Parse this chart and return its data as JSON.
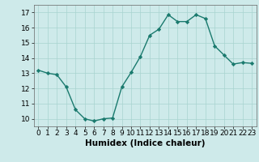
{
  "x": [
    0,
    1,
    2,
    3,
    4,
    5,
    6,
    7,
    8,
    9,
    10,
    11,
    12,
    13,
    14,
    15,
    16,
    17,
    18,
    19,
    20,
    21,
    22,
    23
  ],
  "y": [
    13.2,
    13.0,
    12.9,
    12.1,
    10.6,
    10.0,
    9.85,
    10.0,
    10.05,
    12.1,
    13.05,
    14.1,
    15.5,
    15.9,
    16.85,
    16.4,
    16.4,
    16.85,
    16.6,
    14.8,
    14.2,
    13.6,
    13.7,
    13.65
  ],
  "line_color": "#1a7a6e",
  "marker": "D",
  "markersize": 2.2,
  "linewidth": 1.0,
  "bg_color": "#ceeaea",
  "grid_color": "#a8d4d0",
  "xlabel": "Humidex (Indice chaleur)",
  "xlim": [
    -0.5,
    23.5
  ],
  "ylim": [
    9.5,
    17.5
  ],
  "yticks": [
    10,
    11,
    12,
    13,
    14,
    15,
    16,
    17
  ],
  "xticks": [
    0,
    1,
    2,
    3,
    4,
    5,
    6,
    7,
    8,
    9,
    10,
    11,
    12,
    13,
    14,
    15,
    16,
    17,
    18,
    19,
    20,
    21,
    22,
    23
  ],
  "xlabel_fontsize": 7.5,
  "tick_fontsize": 6.5,
  "ytick_fontsize": 6.5
}
